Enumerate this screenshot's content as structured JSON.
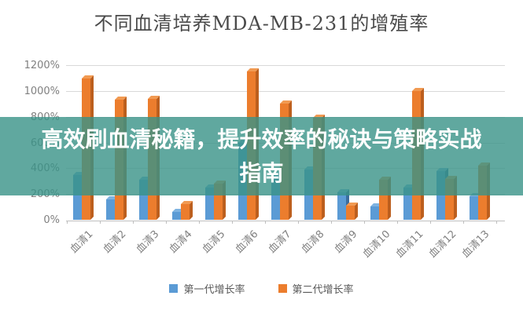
{
  "title": "不同血清培养MDA-MB-231的增殖率",
  "overlay": {
    "text": "高效刷血清秘籍，提升效率的秘诀与策略实战指南",
    "bg_color": "rgba(56,146,135,0.8)",
    "text_color": "#ffffff"
  },
  "chart_data": {
    "type": "bar",
    "title": "不同血清培养MDA-MB-231的增殖率",
    "categories": [
      "血清1",
      "血清2",
      "血清3",
      "血清4",
      "血清5",
      "血清6",
      "血清7",
      "血清8",
      "血清9",
      "血清10",
      "血清11",
      "血清12",
      "血清13"
    ],
    "series": [
      {
        "name": "第一代增长率",
        "color": "#5B9BD5",
        "side_color": "#3A6D9E",
        "top_color": "#7FB3E0",
        "values": [
          350,
          160,
          310,
          60,
          250,
          600,
          350,
          390,
          215,
          105,
          250,
          380,
          180
        ]
      },
      {
        "name": "第二代增长率",
        "color": "#EC7D2D",
        "side_color": "#BC5F1E",
        "top_color": "#F19A52",
        "values": [
          1100,
          930,
          940,
          120,
          280,
          1150,
          900,
          790,
          110,
          310,
          1000,
          320,
          420
        ]
      }
    ],
    "ylabel_ticks": [
      "0%",
      "200%",
      "400%",
      "600%",
      "800%",
      "1000%",
      "1200%"
    ],
    "ylim": [
      0,
      1200
    ],
    "ytick_step": 200,
    "unit": "%",
    "grid": true,
    "legend_position": "bottom",
    "grid_color": "#d9d9d9",
    "axis_color": "#bfbfbf",
    "label_color": "#808080"
  }
}
